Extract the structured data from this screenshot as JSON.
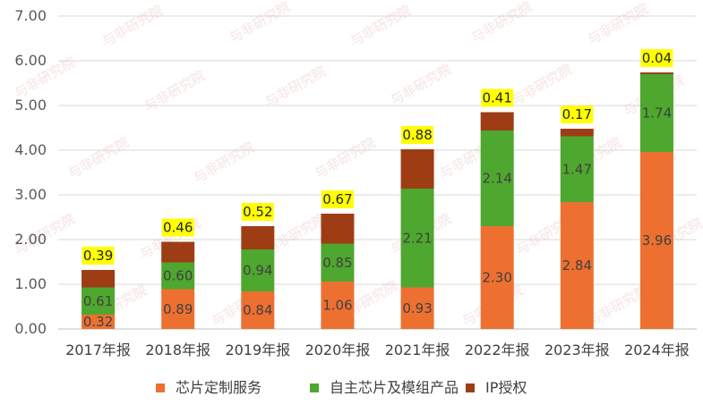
{
  "chart_data": {
    "type": "bar",
    "stacked": true,
    "title": "",
    "xlabel": "",
    "ylabel": "",
    "ylim": [
      0,
      7
    ],
    "yticks": [
      "0.00",
      "1.00",
      "2.00",
      "3.00",
      "4.00",
      "5.00",
      "6.00",
      "7.00"
    ],
    "grid": true,
    "legend_position": "bottom",
    "categories": [
      "2017年报",
      "2018年报",
      "2019年报",
      "2020年报",
      "2021年报",
      "2022年报",
      "2023年报",
      "2024年报"
    ],
    "series": [
      {
        "name": "芯片定制服务",
        "color": "#ED7031",
        "values": [
          0.32,
          0.89,
          0.84,
          1.06,
          0.93,
          2.3,
          2.84,
          3.96
        ],
        "labels": [
          "0.32",
          "0.89",
          "0.84",
          "1.06",
          "0.93",
          "2.30",
          "2.84",
          "3.96"
        ]
      },
      {
        "name": "自主芯片及模组产品",
        "color": "#4EA72E",
        "values": [
          0.61,
          0.6,
          0.94,
          0.85,
          2.21,
          2.14,
          1.47,
          1.74
        ],
        "labels": [
          "0.61",
          "0.60",
          "0.94",
          "0.85",
          "2.21",
          "2.14",
          "1.47",
          "1.74"
        ]
      },
      {
        "name": "IP授权",
        "color": "#9E3D14",
        "values": [
          0.39,
          0.46,
          0.52,
          0.67,
          0.88,
          0.41,
          0.17,
          0.04
        ],
        "labels": [
          "0.39",
          "0.46",
          "0.52",
          "0.67",
          "0.88",
          "0.41",
          "0.17",
          "0.04"
        ],
        "label_background": "#FFFF00"
      }
    ]
  },
  "watermark": "与非研究院"
}
